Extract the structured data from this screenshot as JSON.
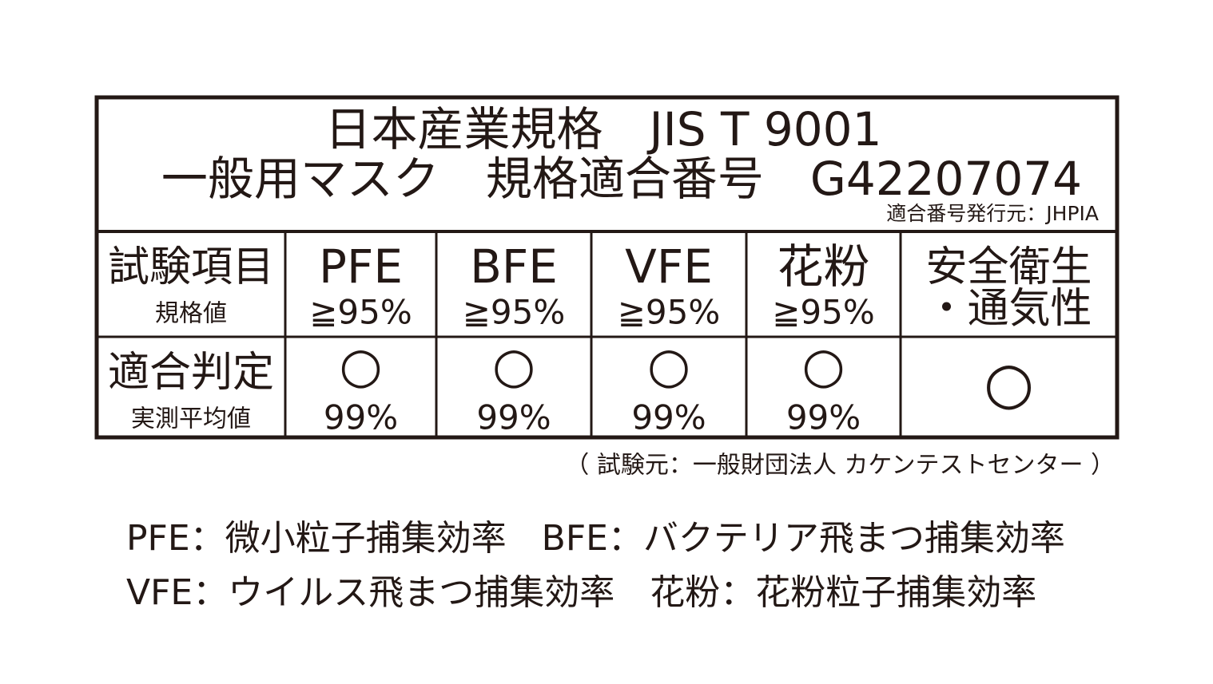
{
  "header": {
    "title": "日本産業規格　JIS T 9001",
    "subtitle": "一般用マスク　規格適合番号　G42207074",
    "issuer": "適合番号発行元：JHPIA"
  },
  "table": {
    "rows": [
      [
        {
          "main": "試験項目",
          "sub": "規格値"
        },
        {
          "main": "PFE",
          "sub": "≧95%"
        },
        {
          "main": "BFE",
          "sub": "≧95%"
        },
        {
          "main": "VFE",
          "sub": "≧95%"
        },
        {
          "main": "花粉",
          "sub": "≧95%"
        },
        {
          "main": "安全衛生",
          "sub": "・通気性"
        }
      ],
      [
        {
          "main": "適合判定",
          "sub": "実測平均値"
        },
        {
          "main": "○",
          "sub": "99%"
        },
        {
          "main": "○",
          "sub": "99%"
        },
        {
          "main": "○",
          "sub": "99%"
        },
        {
          "main": "○",
          "sub": "99%"
        },
        {
          "main": "○"
        }
      ]
    ]
  },
  "note": "（ 試験元：一般財団法人 カケンテストセンター ）",
  "legend": [
    "PFE：微小粒子捕集効率　BFE：バクテリア飛まつ捕集効率",
    "VFE：ウイルス飛まつ捕集効率　花粉：花粉粒子捕集効率"
  ]
}
